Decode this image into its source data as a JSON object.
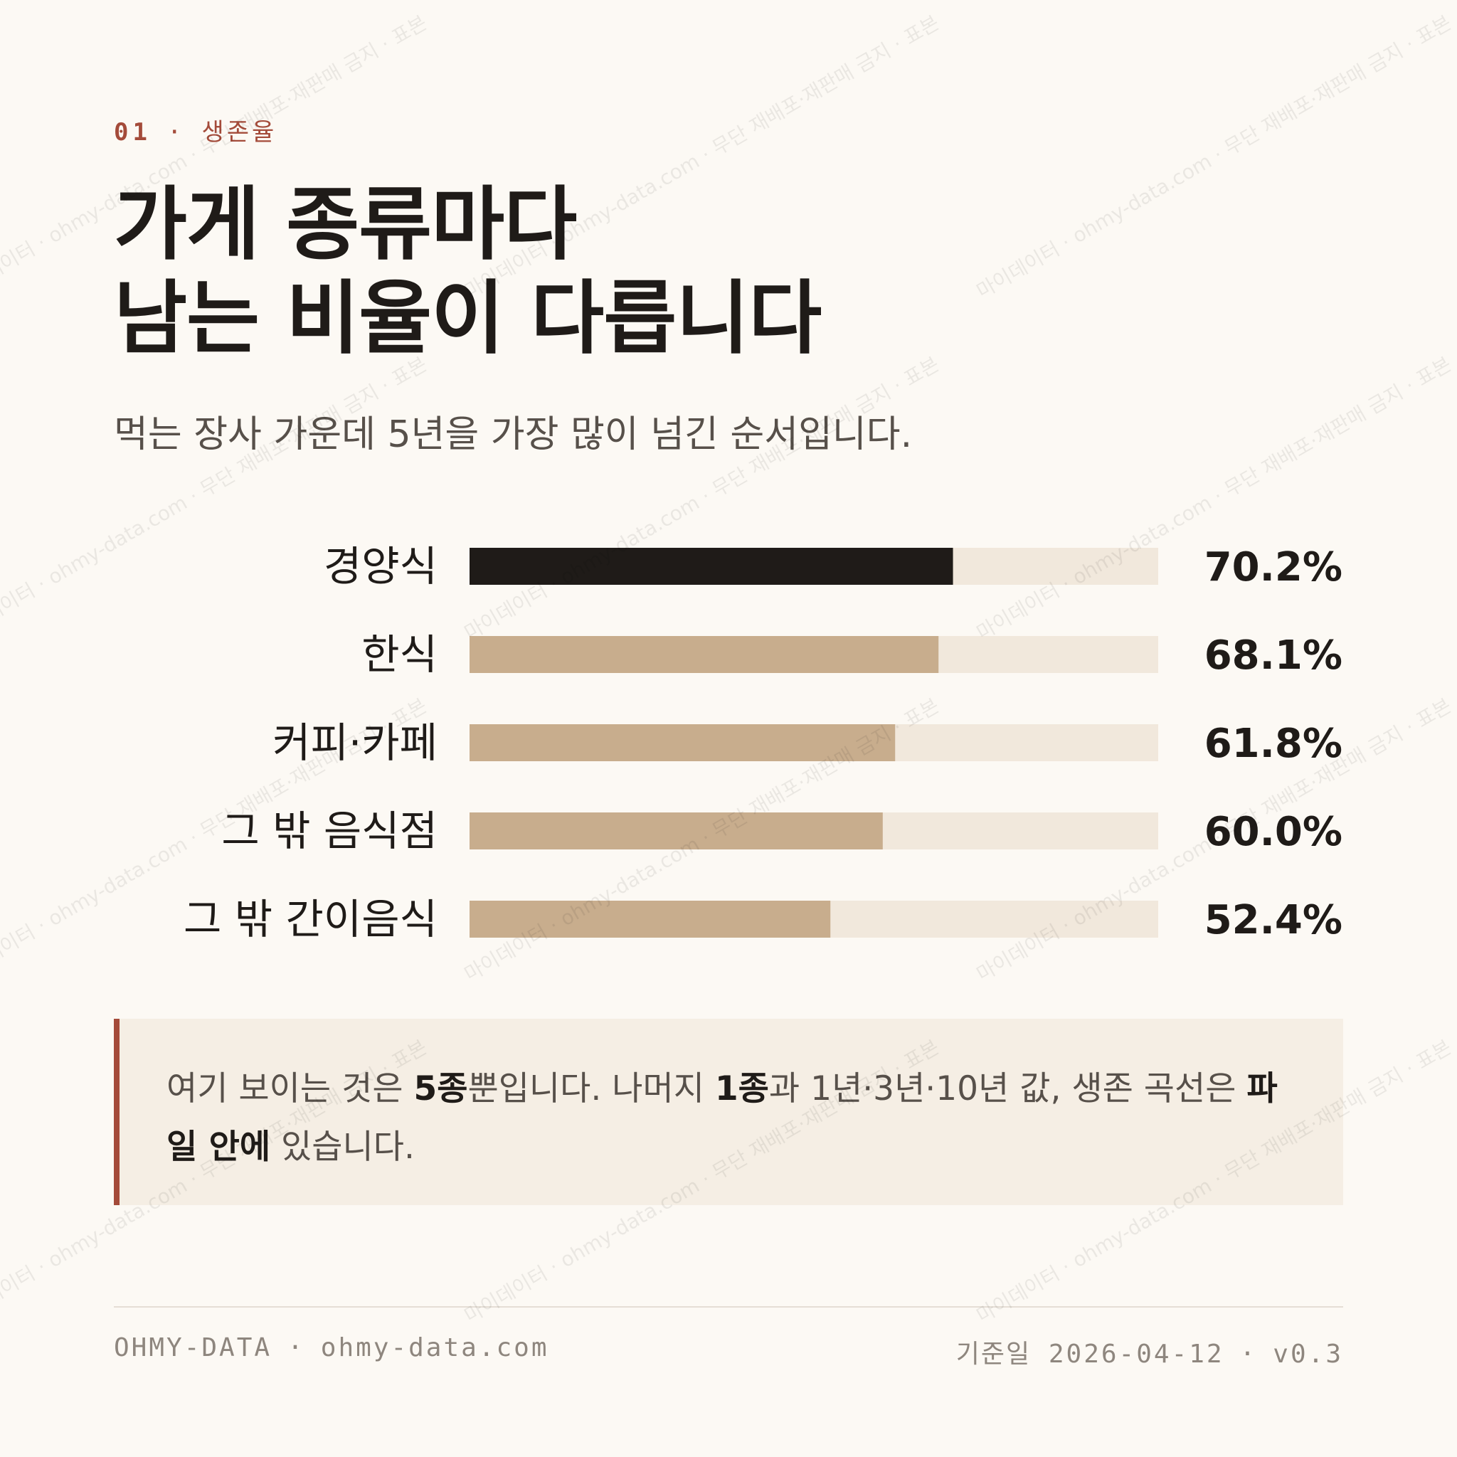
{
  "eyebrow": {
    "number": "01",
    "separator": "·",
    "label": "생존율"
  },
  "title": {
    "line1": "가게 종류마다",
    "line2": "남는 비율이 다릅니다"
  },
  "subtitle": "먹는 장사 가운데 5년을 가장 많이 넘긴 순서입니다.",
  "chart_data": {
    "type": "bar",
    "orientation": "horizontal",
    "categories": [
      "경양식",
      "한식",
      "커피·카페",
      "그 밖 음식점",
      "그 밖 간이음식"
    ],
    "values": [
      70.2,
      68.1,
      61.8,
      60.0,
      52.4
    ],
    "value_labels": [
      "70.2%",
      "68.1%",
      "61.8%",
      "60.0%",
      "52.4%"
    ],
    "xlim": [
      0,
      100
    ],
    "unit": "%",
    "grid": false,
    "legend": "none",
    "colors": {
      "highlight": "#1f1b18",
      "bar": "#c8ad8d",
      "track": "#f1e8dc"
    },
    "highlight_index": 0
  },
  "note": {
    "t1": "여기 보이는 것은 ",
    "b1": "5종",
    "t2": "뿐입니다. 나머지 ",
    "b2": "1종",
    "t3": "과 1년·3년·10년 값, 생존 곡선은 ",
    "b3": "파일 안에",
    "t4": " 있습니다."
  },
  "footer": {
    "brand": "OHMY-DATA",
    "separator": "·",
    "site": "ohmy-data.com",
    "date_label": "기준일",
    "date": "2026-04-12",
    "version": "v0.3"
  },
  "watermark": {
    "text": "마이데이터 · ohmy-data.com · 무단 재배포·재판매 금지 · 표본"
  },
  "colors": {
    "background": "#fcf9f4",
    "accent": "#a44b3a",
    "text": "#1f1b18"
  }
}
